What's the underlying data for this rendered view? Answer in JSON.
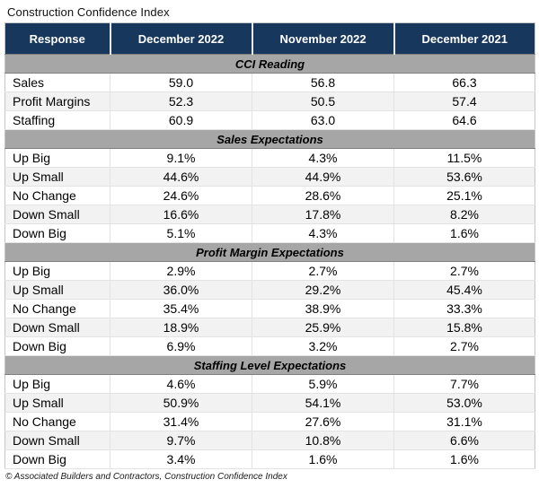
{
  "colors": {
    "header_bg": "#17375C",
    "header_text": "#FFFFFF",
    "section_bg": "#A6A6A6",
    "alt_row_bg": "#F2F2F2"
  },
  "chart_data": {
    "type": "table",
    "title": "Construction Confidence Index",
    "columns": [
      "Response",
      "December 2022",
      "November 2022",
      "December 2021"
    ],
    "sections": [
      {
        "header": "CCI Reading",
        "rows": [
          [
            "Sales",
            "59.0",
            "56.8",
            "66.3"
          ],
          [
            "Profit Margins",
            "52.3",
            "50.5",
            "57.4"
          ],
          [
            "Staffing",
            "60.9",
            "63.0",
            "64.6"
          ]
        ]
      },
      {
        "header": "Sales Expectations",
        "rows": [
          [
            "Up Big",
            "9.1%",
            "4.3%",
            "11.5%"
          ],
          [
            "Up Small",
            "44.6%",
            "44.9%",
            "53.6%"
          ],
          [
            "No Change",
            "24.6%",
            "28.6%",
            "25.1%"
          ],
          [
            "Down Small",
            "16.6%",
            "17.8%",
            "8.2%"
          ],
          [
            "Down Big",
            "5.1%",
            "4.3%",
            "1.6%"
          ]
        ]
      },
      {
        "header": "Profit Margin Expectations",
        "rows": [
          [
            "Up Big",
            "2.9%",
            "2.7%",
            "2.7%"
          ],
          [
            "Up Small",
            "36.0%",
            "29.2%",
            "45.4%"
          ],
          [
            "No Change",
            "35.4%",
            "38.9%",
            "33.3%"
          ],
          [
            "Down Small",
            "18.9%",
            "25.9%",
            "15.8%"
          ],
          [
            "Down Big",
            "6.9%",
            "3.2%",
            "2.7%"
          ]
        ]
      },
      {
        "header": "Staffing Level Expectations",
        "rows": [
          [
            "Up Big",
            "4.6%",
            "5.9%",
            "7.7%"
          ],
          [
            "Up Small",
            "50.9%",
            "54.1%",
            "53.0%"
          ],
          [
            "No Change",
            "31.4%",
            "27.6%",
            "31.1%"
          ],
          [
            "Down Small",
            "9.7%",
            "10.8%",
            "6.6%"
          ],
          [
            "Down Big",
            "3.4%",
            "1.6%",
            "1.6%"
          ]
        ]
      }
    ],
    "source_note": "© Associated Builders and Contractors, Construction Confidence Index"
  }
}
